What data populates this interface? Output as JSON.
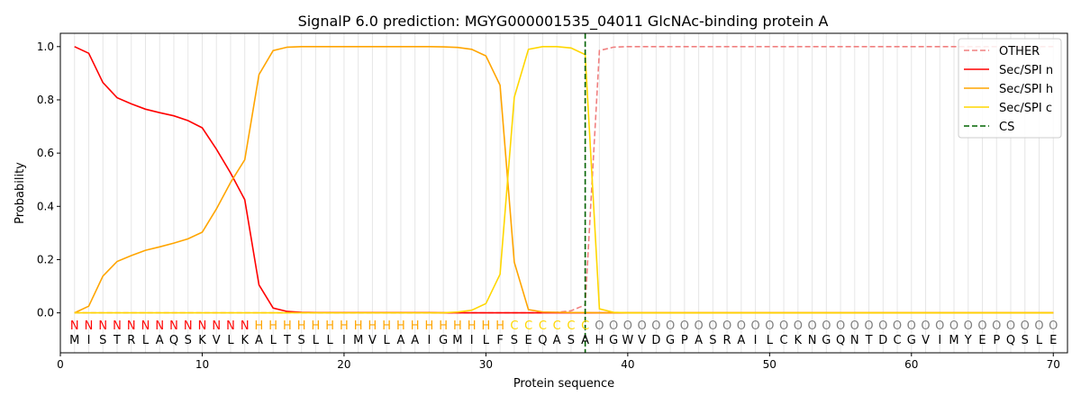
{
  "chart_data": {
    "type": "line",
    "title": "SignalP 6.0 prediction: MGYG000001535_04011 GlcNAc-binding protein A",
    "xlabel": "Protein sequence",
    "ylabel": "Probability",
    "xlim": [
      0,
      71
    ],
    "ylim": [
      -0.15,
      1.05
    ],
    "xticks": [
      0,
      10,
      20,
      30,
      40,
      50,
      60,
      70
    ],
    "yticks": [
      0.0,
      0.2,
      0.4,
      0.6,
      0.8,
      1.0
    ],
    "xtick_labels": [
      "0",
      "10",
      "20",
      "30",
      "40",
      "50",
      "60",
      "70"
    ],
    "ytick_labels": [
      "0.0",
      "0.2",
      "0.4",
      "0.6",
      "0.8",
      "1.0"
    ],
    "vertical_grid": true,
    "legend_position": "top-right",
    "colors": {
      "OTHER": "#f08080",
      "n": "#ff0000",
      "h": "#ffa500",
      "c": "#ffd700",
      "CS": "#006400",
      "O_label": "#808080"
    },
    "sequence": "MISTRLAQSKVLKALTSLLIMVLAAIGMILFSEQASAHGWVDGPASRAILCKNGQNTDCGVIMYEPQSLE",
    "labels": "NNNNNNNNNNNNNHHHHHHHHHHHHHHHHHHCCCCCCOOOOOOOOOOOOOOOOOOOOOOOOOOOOOOOOO",
    "series": [
      {
        "name": "OTHER",
        "style": "dashed",
        "color": "#f08080",
        "x": [
          1,
          2,
          3,
          4,
          5,
          6,
          7,
          8,
          9,
          10,
          11,
          12,
          13,
          14,
          15,
          16,
          17,
          18,
          19,
          20,
          21,
          22,
          23,
          24,
          25,
          26,
          27,
          28,
          29,
          30,
          31,
          32,
          33,
          34,
          35,
          36,
          37,
          38,
          39,
          40,
          41,
          42,
          43,
          44,
          45,
          46,
          47,
          48,
          49,
          50,
          51,
          52,
          53,
          54,
          55,
          56,
          57,
          58,
          59,
          60,
          61,
          62,
          63,
          64,
          65,
          66,
          67,
          68,
          69,
          70
        ],
        "y": [
          0,
          0,
          0,
          0,
          0,
          0,
          0,
          0,
          0,
          0,
          0,
          0,
          0,
          0,
          0,
          0,
          0,
          0,
          0,
          0,
          0,
          0,
          0,
          0,
          0,
          0,
          0,
          0,
          0,
          0,
          0,
          0,
          0,
          0,
          0.002,
          0.008,
          0.03,
          0.985,
          0.998,
          1,
          1,
          1,
          1,
          1,
          1,
          1,
          1,
          1,
          1,
          1,
          1,
          1,
          1,
          1,
          1,
          1,
          1,
          1,
          1,
          1,
          1,
          1,
          1,
          1,
          1,
          1,
          1,
          1,
          1,
          1
        ]
      },
      {
        "name": "Sec/SPI n",
        "style": "solid",
        "color": "#ff0000",
        "x": [
          1,
          2,
          3,
          4,
          5,
          6,
          7,
          8,
          9,
          10,
          11,
          12,
          13,
          14,
          15,
          16,
          17,
          18,
          19,
          20,
          21,
          22,
          23,
          24,
          25,
          26,
          27,
          28,
          29,
          30,
          31,
          32,
          33,
          34,
          35,
          36,
          37,
          38,
          39,
          40,
          41,
          42,
          43,
          44,
          45,
          46,
          47,
          48,
          49,
          50,
          51,
          52,
          53,
          54,
          55,
          56,
          57,
          58,
          59,
          60,
          61,
          62,
          63,
          64,
          65,
          66,
          67,
          68,
          69,
          70
        ],
        "y": [
          1.0,
          0.975,
          0.865,
          0.808,
          0.785,
          0.765,
          0.752,
          0.74,
          0.722,
          0.695,
          0.615,
          0.525,
          0.425,
          0.105,
          0.018,
          0.005,
          0.002,
          0.001,
          0.001,
          0.001,
          0.001,
          0.001,
          0.001,
          0.001,
          0.001,
          0.001,
          0,
          0,
          0,
          0,
          0,
          0,
          0,
          0,
          0,
          0,
          0,
          0,
          0,
          0,
          0,
          0,
          0,
          0,
          0,
          0,
          0,
          0,
          0,
          0,
          0,
          0,
          0,
          0,
          0,
          0,
          0,
          0,
          0,
          0,
          0,
          0,
          0,
          0,
          0,
          0,
          0,
          0,
          0,
          0
        ]
      },
      {
        "name": "Sec/SPI h",
        "style": "solid",
        "color": "#ffa500",
        "x": [
          1,
          2,
          3,
          4,
          5,
          6,
          7,
          8,
          9,
          10,
          11,
          12,
          13,
          14,
          15,
          16,
          17,
          18,
          19,
          20,
          21,
          22,
          23,
          24,
          25,
          26,
          27,
          28,
          29,
          30,
          31,
          32,
          33,
          34,
          35,
          36,
          37,
          38,
          39,
          40,
          41,
          42,
          43,
          44,
          45,
          46,
          47,
          48,
          49,
          50,
          51,
          52,
          53,
          54,
          55,
          56,
          57,
          58,
          59,
          60,
          61,
          62,
          63,
          64,
          65,
          66,
          67,
          68,
          69,
          70
        ],
        "y": [
          0.0,
          0.025,
          0.138,
          0.193,
          0.215,
          0.235,
          0.248,
          0.262,
          0.278,
          0.303,
          0.39,
          0.49,
          0.575,
          0.895,
          0.985,
          0.998,
          1,
          1,
          1,
          1,
          1,
          1,
          1,
          1,
          1,
          1,
          0.999,
          0.997,
          0.99,
          0.965,
          0.855,
          0.19,
          0.012,
          0.003,
          0.002,
          0.001,
          0.001,
          0,
          0,
          0,
          0,
          0,
          0,
          0,
          0,
          0,
          0,
          0,
          0,
          0,
          0,
          0,
          0,
          0,
          0,
          0,
          0,
          0,
          0,
          0,
          0,
          0,
          0,
          0,
          0,
          0,
          0,
          0,
          0,
          0
        ]
      },
      {
        "name": "Sec/SPI c",
        "style": "solid",
        "color": "#ffd700",
        "x": [
          1,
          2,
          3,
          4,
          5,
          6,
          7,
          8,
          9,
          10,
          11,
          12,
          13,
          14,
          15,
          16,
          17,
          18,
          19,
          20,
          21,
          22,
          23,
          24,
          25,
          26,
          27,
          28,
          29,
          30,
          31,
          32,
          33,
          34,
          35,
          36,
          37,
          38,
          39,
          40,
          41,
          42,
          43,
          44,
          45,
          46,
          47,
          48,
          49,
          50,
          51,
          52,
          53,
          54,
          55,
          56,
          57,
          58,
          59,
          60,
          61,
          62,
          63,
          64,
          65,
          66,
          67,
          68,
          69,
          70
        ],
        "y": [
          0,
          0,
          0,
          0,
          0,
          0,
          0,
          0,
          0,
          0,
          0,
          0,
          0,
          0,
          0,
          0,
          0,
          0,
          0,
          0,
          0,
          0,
          0,
          0,
          0,
          0,
          0,
          0.003,
          0.01,
          0.035,
          0.145,
          0.81,
          0.99,
          1,
          1,
          0.995,
          0.97,
          0.015,
          0.002,
          0,
          0,
          0,
          0,
          0,
          0,
          0,
          0,
          0,
          0,
          0,
          0,
          0,
          0,
          0,
          0,
          0,
          0,
          0,
          0,
          0,
          0,
          0,
          0,
          0,
          0,
          0,
          0,
          0,
          0,
          0
        ]
      }
    ],
    "cs_position": 37,
    "legend": [
      "OTHER",
      "Sec/SPI n",
      "Sec/SPI h",
      "Sec/SPI c",
      "CS"
    ]
  }
}
